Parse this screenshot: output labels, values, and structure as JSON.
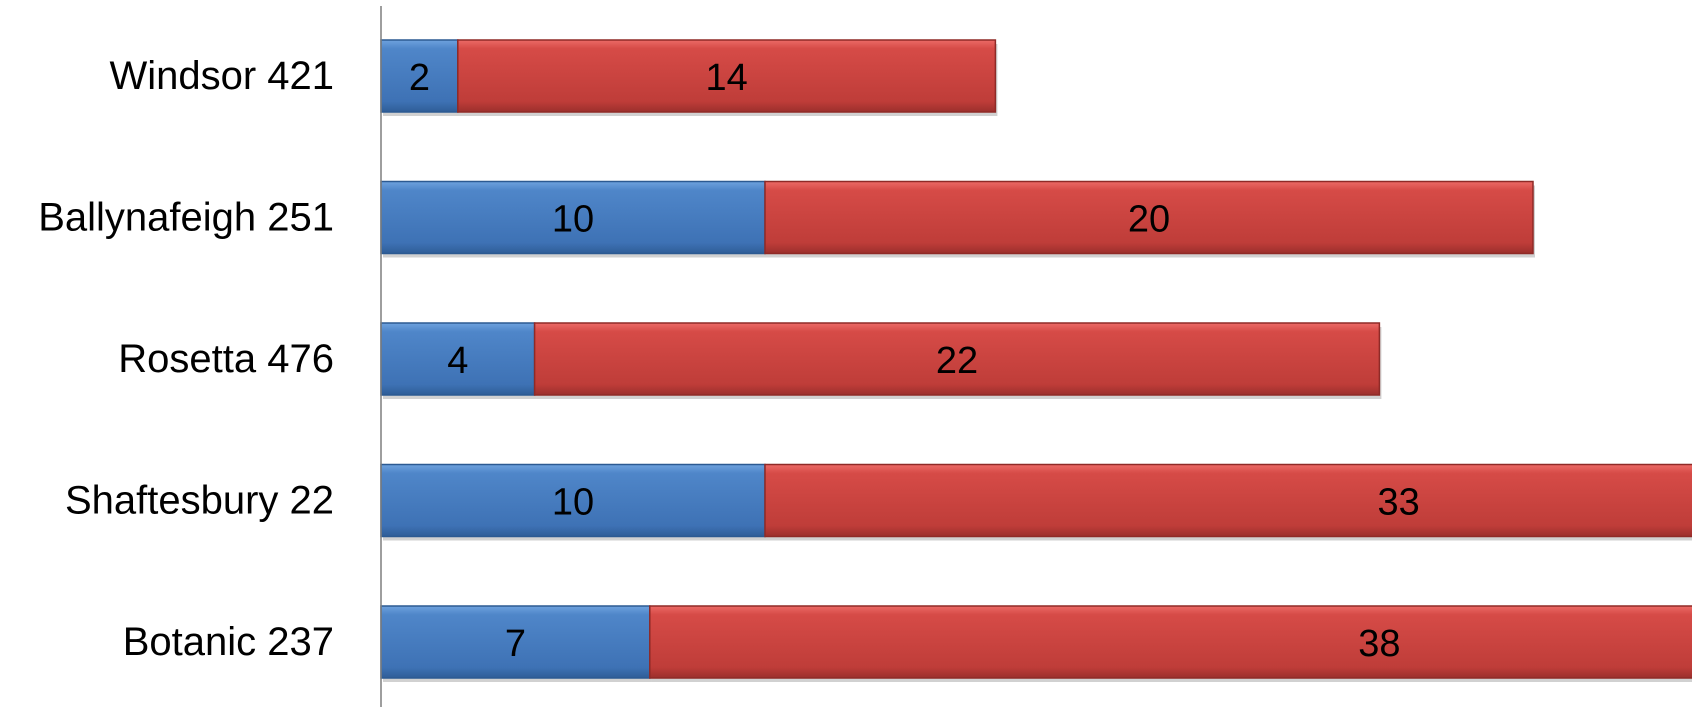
{
  "chart_data": {
    "type": "bar",
    "orientation": "horizontal",
    "stacked": true,
    "categories": [
      "Windsor 421",
      "Ballynafeigh 251",
      "Rosetta 476",
      "Shaftesbury 22",
      "Botanic 237"
    ],
    "series": [
      {
        "values": [
          2,
          10,
          4,
          10,
          7
        ],
        "color": "#4a7ebb"
      },
      {
        "values": [
          14,
          20,
          22,
          33,
          38
        ],
        "color": "#c0504d"
      }
    ],
    "grid": false,
    "legend": "none"
  }
}
